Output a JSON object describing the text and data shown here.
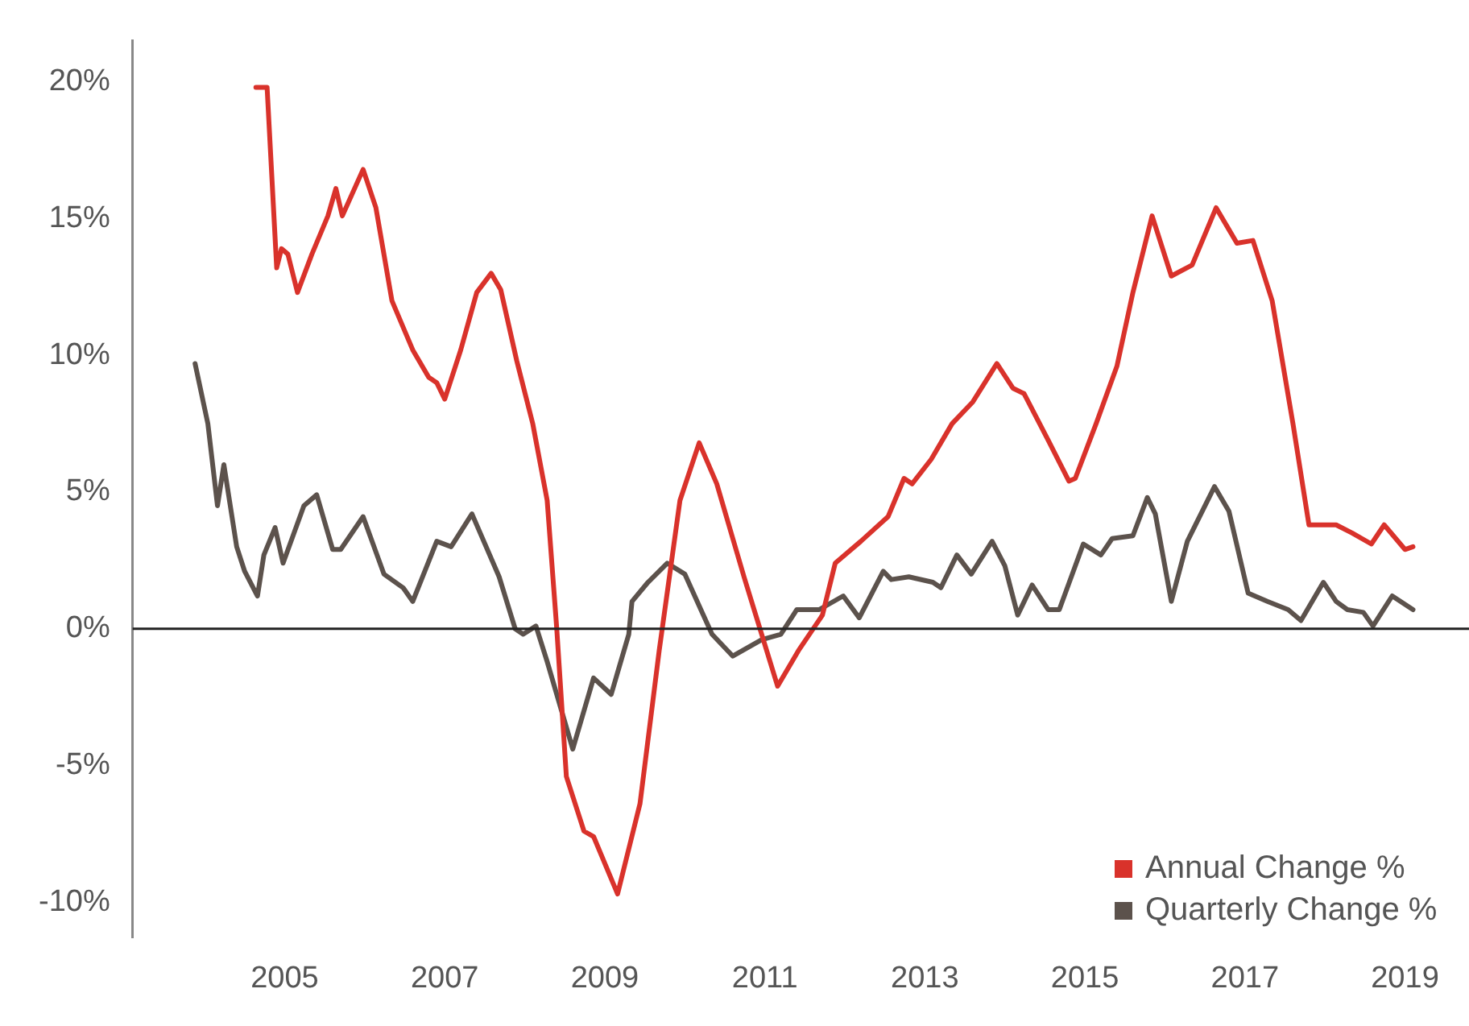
{
  "chart_data": {
    "type": "line",
    "xlim": [
      2003.1,
      2019.8
    ],
    "xticks": [
      2005,
      2007,
      2009,
      2011,
      2013,
      2015,
      2017,
      2019
    ],
    "ylim": [
      -11.3,
      21.5
    ],
    "yticks": [
      {
        "value": -10,
        "label": "-10%"
      },
      {
        "value": -5,
        "label": "-5%"
      },
      {
        "value": 0,
        "label": "0%"
      },
      {
        "value": 5,
        "label": "5%"
      },
      {
        "value": 10,
        "label": "10%"
      },
      {
        "value": 15,
        "label": "15%"
      },
      {
        "value": 20,
        "label": "20%"
      }
    ],
    "grid": false,
    "legend": "bottom right",
    "marker": "none",
    "line_style": "solid",
    "ref_lines": [
      {
        "axis": "y",
        "value": 0,
        "color": "#222222"
      }
    ],
    "series": [
      {
        "name": "Annual Change %",
        "color": "#d9322b",
        "x": [
          2004.64,
          2004.78,
          2004.9,
          2004.96,
          2005.04,
          2005.16,
          2005.34,
          2005.54,
          2005.64,
          2005.72,
          2005.98,
          2006.14,
          2006.34,
          2006.6,
          2006.8,
          2006.9,
          2007.0,
          2007.2,
          2007.4,
          2007.58,
          2007.7,
          2007.9,
          2008.1,
          2008.28,
          2008.4,
          2008.52,
          2008.74,
          2008.86,
          2009.16,
          2009.44,
          2009.68,
          2009.94,
          2010.18,
          2010.4,
          2010.74,
          2011.16,
          2011.42,
          2011.72,
          2011.88,
          2012.2,
          2012.54,
          2012.74,
          2012.84,
          2013.08,
          2013.34,
          2013.6,
          2013.9,
          2014.1,
          2014.24,
          2014.54,
          2014.8,
          2014.88,
          2015.14,
          2015.4,
          2015.6,
          2015.84,
          2016.08,
          2016.34,
          2016.64,
          2016.9,
          2017.1,
          2017.34,
          2017.6,
          2017.8,
          2018.14,
          2018.34,
          2018.58,
          2018.74,
          2019.0,
          2019.1
        ],
        "values": [
          19.8,
          19.8,
          13.2,
          13.9,
          13.7,
          12.3,
          13.7,
          15.1,
          16.1,
          15.1,
          16.8,
          15.4,
          12.0,
          10.2,
          9.2,
          9.0,
          8.4,
          10.2,
          12.3,
          13.0,
          12.4,
          9.8,
          7.5,
          4.7,
          0,
          -5.4,
          -7.4,
          -7.6,
          -9.7,
          -6.4,
          -0.8,
          4.7,
          6.8,
          5.3,
          1.9,
          -2.1,
          -0.8,
          0.5,
          2.4,
          3.2,
          4.1,
          5.5,
          5.3,
          6.2,
          7.5,
          8.3,
          9.7,
          8.8,
          8.6,
          6.9,
          5.4,
          5.5,
          7.5,
          9.6,
          12.3,
          15.1,
          12.9,
          13.3,
          15.4,
          14.1,
          14.2,
          12.0,
          7.5,
          3.8,
          3.8,
          3.5,
          3.1,
          3.8,
          2.9,
          3.0
        ]
      },
      {
        "name": "Quarterly Change %",
        "color": "#5c524c",
        "x": [
          2003.88,
          2004.04,
          2004.16,
          2004.24,
          2004.4,
          2004.5,
          2004.66,
          2004.74,
          2004.88,
          2004.98,
          2005.24,
          2005.4,
          2005.6,
          2005.7,
          2005.98,
          2006.24,
          2006.48,
          2006.6,
          2006.9,
          2007.08,
          2007.34,
          2007.68,
          2007.88,
          2007.98,
          2008.14,
          2008.28,
          2008.6,
          2008.86,
          2009.08,
          2009.3,
          2009.34,
          2009.54,
          2009.78,
          2010.0,
          2010.34,
          2010.6,
          2010.96,
          2011.2,
          2011.4,
          2011.68,
          2011.98,
          2012.18,
          2012.48,
          2012.58,
          2012.8,
          2013.1,
          2013.2,
          2013.4,
          2013.58,
          2013.84,
          2014.0,
          2014.16,
          2014.34,
          2014.54,
          2014.68,
          2014.98,
          2015.2,
          2015.34,
          2015.6,
          2015.78,
          2015.88,
          2016.08,
          2016.28,
          2016.62,
          2016.8,
          2017.04,
          2017.28,
          2017.54,
          2017.7,
          2017.98,
          2018.14,
          2018.28,
          2018.48,
          2018.6,
          2018.84,
          2019.1
        ],
        "values": [
          9.7,
          7.5,
          4.5,
          6.0,
          3.0,
          2.1,
          1.2,
          2.7,
          3.7,
          2.4,
          4.5,
          4.9,
          2.9,
          2.9,
          4.1,
          2.0,
          1.5,
          1.0,
          3.2,
          3.0,
          4.2,
          1.9,
          0.0,
          -0.2,
          0.1,
          -1.2,
          -4.4,
          -1.8,
          -2.4,
          -0.2,
          1.0,
          1.7,
          2.4,
          2.0,
          -0.2,
          -1.0,
          -0.4,
          -0.2,
          0.7,
          0.7,
          1.2,
          0.4,
          2.1,
          1.8,
          1.9,
          1.7,
          1.5,
          2.7,
          2.0,
          3.2,
          2.3,
          0.5,
          1.6,
          0.7,
          0.7,
          3.1,
          2.7,
          3.3,
          3.4,
          4.8,
          4.2,
          1.0,
          3.2,
          5.2,
          4.3,
          1.3,
          1.0,
          0.7,
          0.3,
          1.7,
          1.0,
          0.7,
          0.6,
          0.1,
          1.2,
          0.7
        ]
      }
    ]
  }
}
